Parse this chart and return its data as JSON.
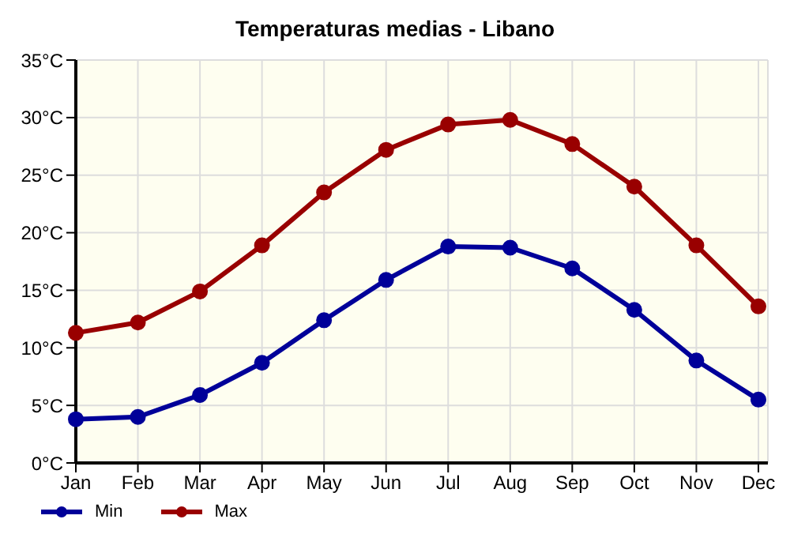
{
  "chart_data": {
    "type": "line",
    "title": "Temperaturas medias - Libano",
    "categories": [
      "Jan",
      "Feb",
      "Mar",
      "Apr",
      "May",
      "Jun",
      "Jul",
      "Aug",
      "Sep",
      "Oct",
      "Nov",
      "Dec"
    ],
    "series": [
      {
        "name": "Min",
        "color": "#000099",
        "values": [
          3.8,
          4.0,
          5.9,
          8.7,
          12.4,
          15.9,
          18.8,
          18.7,
          16.9,
          13.3,
          8.9,
          5.5
        ]
      },
      {
        "name": "Max",
        "color": "#990000",
        "values": [
          11.3,
          12.2,
          14.9,
          18.9,
          23.5,
          27.2,
          29.4,
          29.8,
          27.7,
          24.0,
          18.9,
          13.6
        ]
      }
    ],
    "ylim": [
      0,
      35
    ],
    "yticks": [
      {
        "value": 0,
        "label": "0°C"
      },
      {
        "value": 5,
        "label": "5°C"
      },
      {
        "value": 10,
        "label": "10°C"
      },
      {
        "value": 15,
        "label": "15°C"
      },
      {
        "value": 20,
        "label": "20°C"
      },
      {
        "value": 25,
        "label": "25°C"
      },
      {
        "value": 30,
        "label": "30°C"
      },
      {
        "value": 35,
        "label": "35°C"
      }
    ],
    "grid": true,
    "legend": "bottom left",
    "marker": "circle",
    "line_style": "solid"
  }
}
